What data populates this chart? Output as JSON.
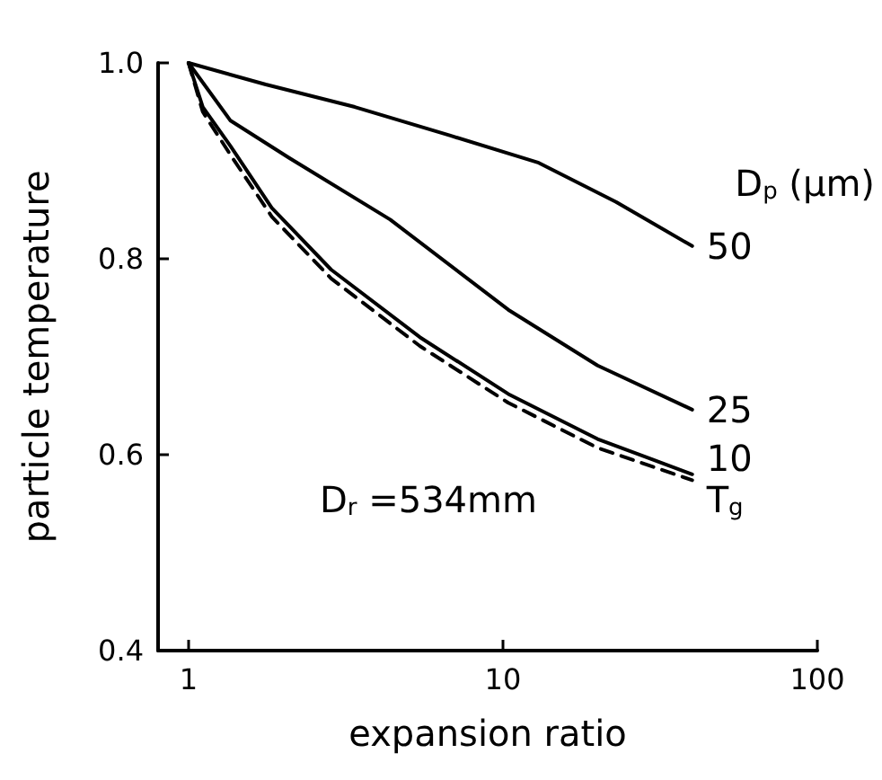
{
  "chart_data": {
    "type": "line",
    "xlabel": "expansion ratio",
    "ylabel": "particle temperature",
    "legend_title": "D$_{p}$ (μm)",
    "annotations": [
      "D$_{r}$ =534mm"
    ],
    "series": [
      {
        "name": "50",
        "color": "#000000",
        "x": [
          1,
          1.76,
          3.38,
          6.77,
          13,
          22.9,
          40
        ],
        "values": [
          1.0,
          0.978,
          0.955,
          0.926,
          0.898,
          0.858,
          0.813
        ]
      },
      {
        "name": "25",
        "color": "#000000",
        "x": [
          1,
          1.36,
          2.09,
          4.38,
          10.4,
          20,
          40
        ],
        "values": [
          1.0,
          0.941,
          0.903,
          0.84,
          0.748,
          0.691,
          0.646
        ]
      },
      {
        "name": "10",
        "color": "#000000",
        "x": [
          1,
          1.11,
          1.36,
          1.84,
          2.84,
          5.44,
          10.4,
          20,
          40
        ],
        "values": [
          1.0,
          0.955,
          0.915,
          0.852,
          0.789,
          0.72,
          0.662,
          0.616,
          0.58
        ]
      },
      {
        "name": "T$_{g}$",
        "color": "#000000",
        "line_style": "dashed",
        "x": [
          1,
          1.11,
          1.36,
          1.84,
          2.84,
          5.44,
          10.4,
          20,
          40
        ],
        "values": [
          1.0,
          0.95,
          0.906,
          0.843,
          0.78,
          0.711,
          0.653,
          0.607,
          0.574
        ]
      }
    ],
    "log": "x",
    "xlim": [
      0.8,
      100
    ],
    "xticks": [
      1,
      10,
      100
    ],
    "ylim": [
      0.4,
      1.0
    ],
    "yticks": [
      {
        "value": 0.4,
        "label": "0.4"
      },
      {
        "value": 0.6,
        "label": "0.6"
      },
      {
        "value": 0.8,
        "label": "0.8"
      },
      {
        "value": 1.0,
        "label": "1.0"
      }
    ],
    "marker": "none",
    "line_style": "solid",
    "grid": false,
    "legend": false
  }
}
